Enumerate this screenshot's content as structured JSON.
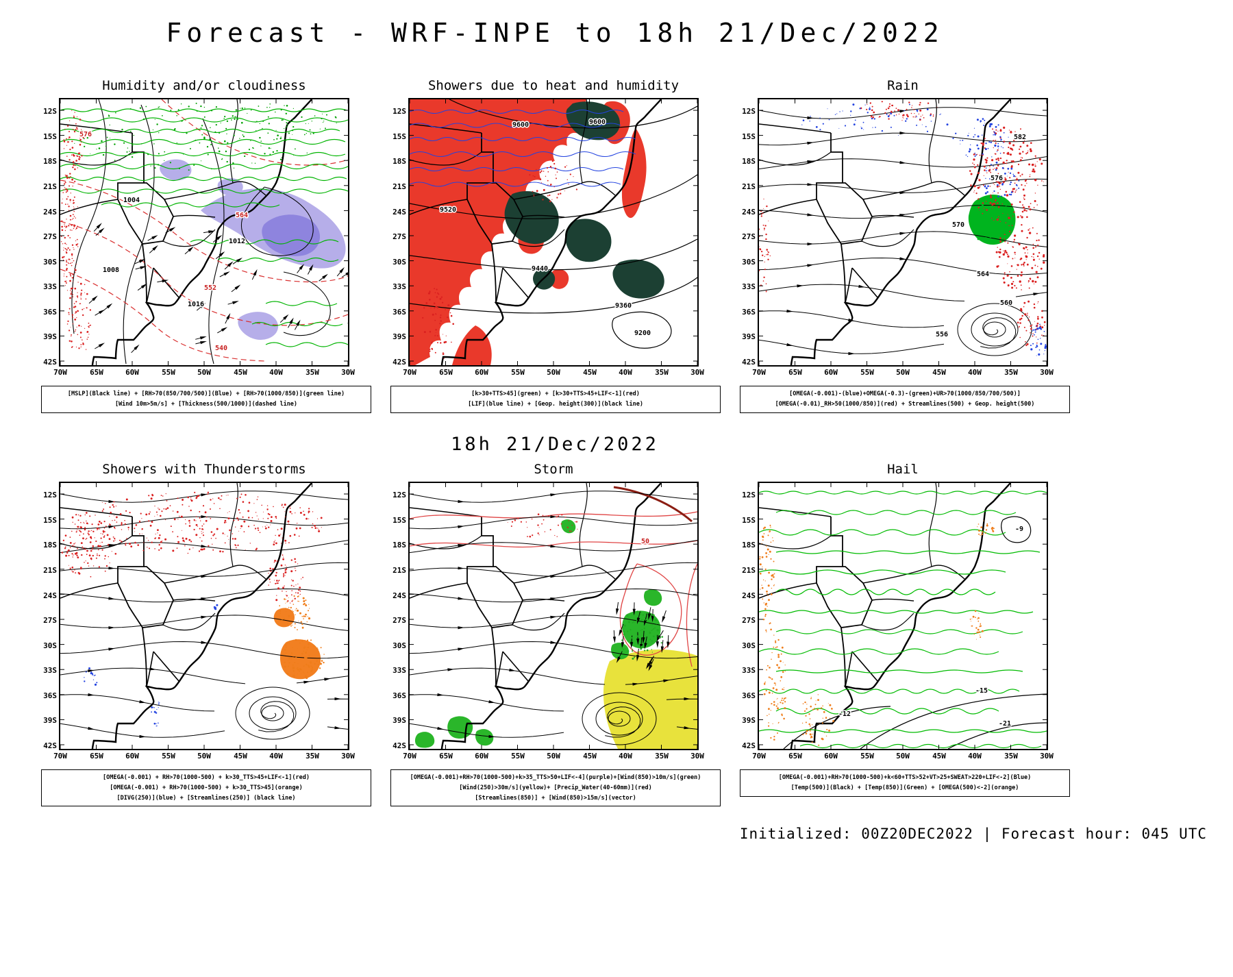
{
  "page": {
    "title": "Forecast - WRF-INPE to 18h 21/Dec/2022",
    "between_rows_label": "18h 21/Dec/2022",
    "footer": "Initialized: 00Z20DEC2022 | Forecast hour: 045 UTC"
  },
  "axes": {
    "latitude": [
      "12S",
      "15S",
      "18S",
      "21S",
      "24S",
      "27S",
      "30S",
      "33S",
      "36S",
      "39S",
      "42S"
    ],
    "longitude": [
      "70W",
      "65W",
      "60W",
      "55W",
      "50W",
      "45W",
      "40W",
      "35W",
      "30W"
    ]
  },
  "legend_colors": {
    "green_contour": "#00b400",
    "red": "#da2020",
    "blue": "#2343e0",
    "purple_shading": "#b6aee9",
    "dark_instability": "#1c4033",
    "red_fill": "#e9392b",
    "orange": "#ef7d1a",
    "yellow_jet": "#e8e23c",
    "black": "#000000"
  },
  "panels": [
    {
      "title": "Humidity and/or cloudiness",
      "caption": [
        "[MSLP](Black line) + [RH>70(850/700/500)](Blue) + [RH>70(1000/850)](green line)",
        "[Wind 10m>5m/s] + [Thickness(500/1000)](dashed line)"
      ],
      "map_labels": [
        "1008",
        "1004",
        "1012",
        "1016",
        "576",
        "564",
        "552",
        "540"
      ]
    },
    {
      "title": "Showers due to heat and humidity",
      "caption": [
        "[k>30+TTS>45](green) + [k>30+TTS>45+LIF<-1](red)",
        "[LIF](blue line) + [Geop. height(300)](black line)"
      ],
      "map_labels": [
        "9600",
        "9600",
        "9520",
        "9440",
        "9360",
        "9200"
      ]
    },
    {
      "title": "Rain",
      "caption": [
        "[OMEGA(-0.001)-(blue)+OMEGA(-0.3)-(green)+UR>70(1000/850/700/500)]",
        "[OMEGA(-0.01)_RH>50(1000/850)](red) + Streamlines(500) + Geop. height(500)"
      ],
      "map_labels": [
        "582",
        "576",
        "570",
        "564",
        "560",
        "556"
      ]
    },
    {
      "title": "Showers with Thunderstorms",
      "caption": [
        "[OMEGA(-0.001) + RH>70(1000-500) + k>30_TTS>45+LIF<-1](red)",
        "[OMEGA(-0.001) + RH>70(1000-500) + k>30_TTS>45](orange)",
        "[DIVG(250)](blue) + [Streamlines(250)] (black line)"
      ],
      "map_labels": []
    },
    {
      "title": "Storm",
      "caption": [
        "[OMEGA(-0.001)+RH>70(1000-500)+k>35_TTS>50+LIF<-4](purple)+[Wind(850)>10m/s](green)",
        "[Wind(250)>30m/s](yellow)+ [Precip_Water(40-60mm)](red)",
        "[Streamlines(850)] + [Wind(850)>15m/s](vector)"
      ],
      "map_labels": [
        "50"
      ]
    },
    {
      "title": "Hail",
      "caption": [
        "[OMEGA(-0.001)+RH>70(1000-500)+k<60+TTS>52+VT>25+SWEAT>220+LIF<-2](Blue)",
        "[Temp(500)](Black) + [Temp(850)](Green) + [OMEGA(500)<-2](orange)"
      ],
      "map_labels": [
        "-9",
        "-12",
        "-15",
        "-21"
      ]
    }
  ]
}
